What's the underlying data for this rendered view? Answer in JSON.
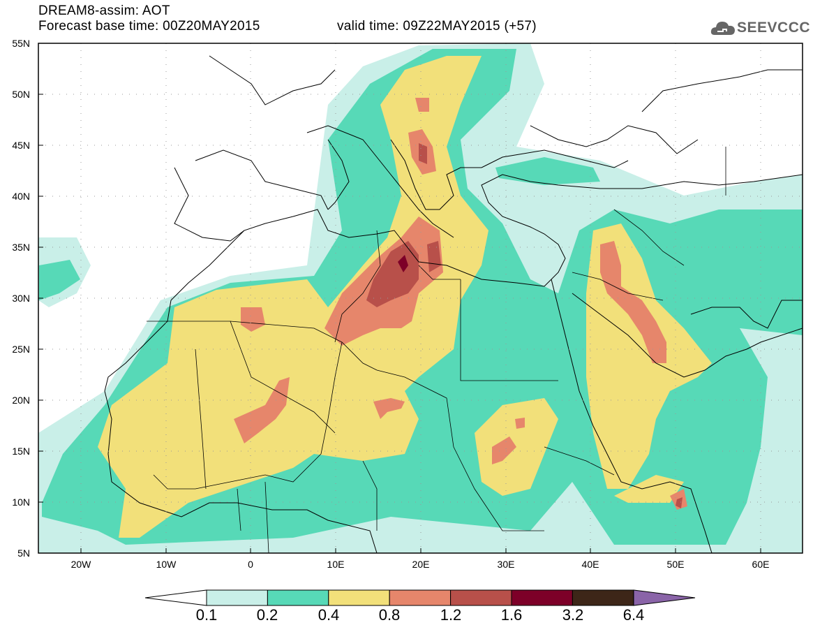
{
  "header": {
    "title": "DREAM8-assim: AOT",
    "base_time": "Forecast base time: 00Z20MAY2015",
    "valid_time": "valid time: 09Z22MAY2015 (+57)",
    "logo_text": "SEEVCCC",
    "logo_icon": "cloud-icon"
  },
  "map": {
    "variable": "AOT",
    "lon_range": [
      -25,
      65
    ],
    "lat_range": [
      5,
      55
    ],
    "lat_labels": [
      "55N",
      "50N",
      "45N",
      "40N",
      "35N",
      "30N",
      "25N",
      "20N",
      "15N",
      "10N",
      "5N"
    ],
    "lon_labels": [
      "20W",
      "10W",
      "0",
      "10E",
      "20E",
      "30E",
      "40E",
      "50E",
      "60E"
    ],
    "grid": "dotted"
  },
  "colorbar": {
    "labels": [
      "0.1",
      "0.2",
      "0.4",
      "0.8",
      "1.2",
      "1.6",
      "3.2",
      "6.4"
    ],
    "colors": [
      "#c9efe8",
      "#57d9b7",
      "#f2e07a",
      "#e6866b",
      "#b8504a",
      "#7d0028",
      "#3d2618",
      "#8a64a8"
    ]
  }
}
